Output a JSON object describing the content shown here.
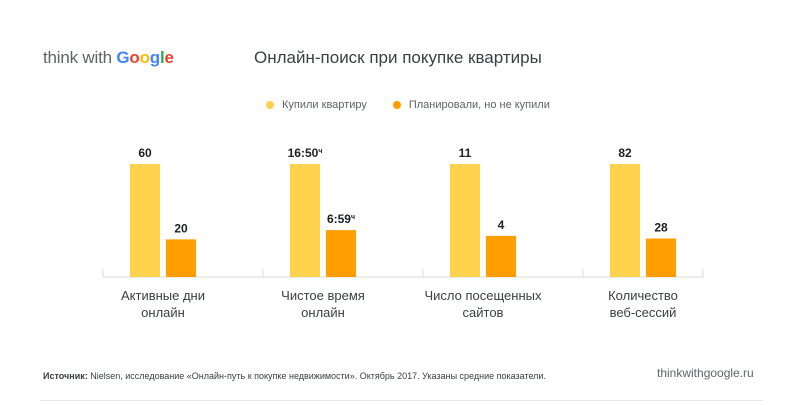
{
  "logo": {
    "prefix": "think with ",
    "google_letters": [
      "G",
      "o",
      "o",
      "g",
      "l",
      "e"
    ]
  },
  "colors": {
    "bought": "#ffd24d",
    "planned": "#ff9e00",
    "axis": "#d9d9d9",
    "label": "#3c4043",
    "value": "#202124"
  },
  "footer": {
    "source_label": "Источник:",
    "source_text": " Nielsen, исследование «Онлайн-путь к покупке недвижимости». Октябрь 2017. Указаны средние показатели.",
    "site": "thinkwithgoogle.ru"
  },
  "chart_data": {
    "type": "bar",
    "title": "Онлайн-поиск при покупке квартиры",
    "categories": [
      [
        "Активные дни",
        "онлайн"
      ],
      [
        "Чистое время",
        "онлайн"
      ],
      [
        "Число посещенных",
        "сайтов"
      ],
      [
        "Количество",
        "веб-сессий"
      ]
    ],
    "series": [
      {
        "name": "Купили квартиру",
        "relative_values": [
          1.0,
          1.0,
          1.0,
          1.0
        ],
        "labels": [
          "60",
          "16:50",
          "11",
          "82"
        ],
        "label_suffix": [
          "",
          "ч",
          "",
          ""
        ]
      },
      {
        "name": "Планировали, но не купили",
        "relative_values": [
          0.333,
          0.415,
          0.364,
          0.341
        ],
        "labels": [
          "20",
          "6:59",
          "4",
          "28"
        ],
        "label_suffix": [
          "",
          "ч",
          "",
          ""
        ]
      }
    ],
    "xlabel": "",
    "ylabel": "",
    "grid": false,
    "legend": "top"
  }
}
